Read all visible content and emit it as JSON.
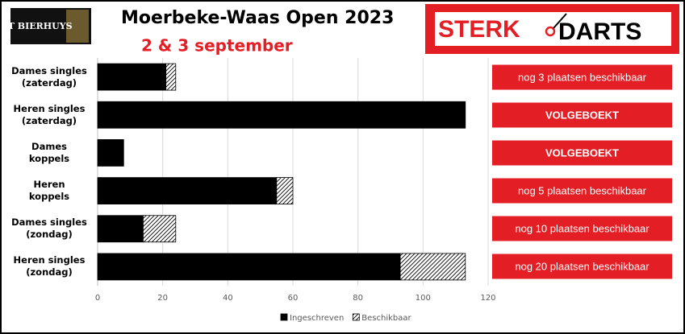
{
  "logos": {
    "left": "'T BIERHUYS",
    "right_1": "STERK",
    "right_2": "DARTS"
  },
  "chart_data": {
    "type": "hbar-stacked",
    "title": "Moerbeke-Waas Open 2023",
    "subtitle": "2 & 3 september",
    "categories": [
      "Dames singles\n(zaterdag)",
      "Heren singles\n(zaterdag)",
      "Dames\nkoppels",
      "Heren\nkoppels",
      "Dames singles\n(zondag)",
      "Heren singles\n(zondag)"
    ],
    "series": [
      {
        "name": "Ingeschreven",
        "color": "#000000",
        "values": [
          21,
          113,
          8,
          55,
          14,
          93
        ]
      },
      {
        "name": "Beschikbaar",
        "color": "#000000",
        "pattern": "hatch",
        "values": [
          3,
          0,
          0,
          5,
          10,
          20
        ]
      }
    ],
    "annotations": [
      "nog 3 plaatsen beschikbaar",
      "VOLGEBOEKT",
      "VOLGEBOEKT",
      "nog 5 plaatsen beschikbaar",
      "nog 10 plaatsen beschikbaar",
      "nog 20 plaatsen beschikbaar"
    ],
    "xlim": [
      0,
      120
    ],
    "xticks": [
      0,
      20,
      40,
      60,
      80,
      100,
      120
    ],
    "grid": true,
    "legend": "bottom"
  }
}
